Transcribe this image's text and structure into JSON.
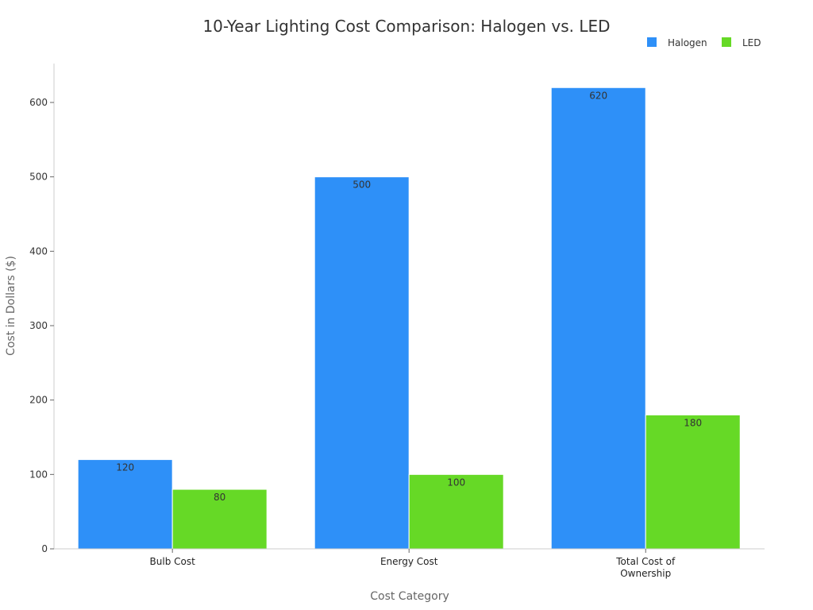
{
  "chart_data": {
    "type": "bar",
    "title": "10-Year Lighting Cost Comparison: Halogen vs. LED",
    "xlabel": "Cost Category",
    "ylabel": "Cost in Dollars ($)",
    "categories": [
      "Bulb Cost",
      "Energy Cost",
      "Total Cost of Ownership"
    ],
    "series": [
      {
        "name": "Halogen",
        "values": [
          120,
          500,
          620
        ],
        "color": "#2e90f8"
      },
      {
        "name": "LED",
        "values": [
          80,
          100,
          180
        ],
        "color": "#66d926"
      }
    ],
    "ylim": [
      0,
      650
    ],
    "yticks": [
      0,
      100,
      200,
      300,
      400,
      500,
      600
    ],
    "grid": false,
    "legend": "top-right",
    "data_labels": true
  }
}
